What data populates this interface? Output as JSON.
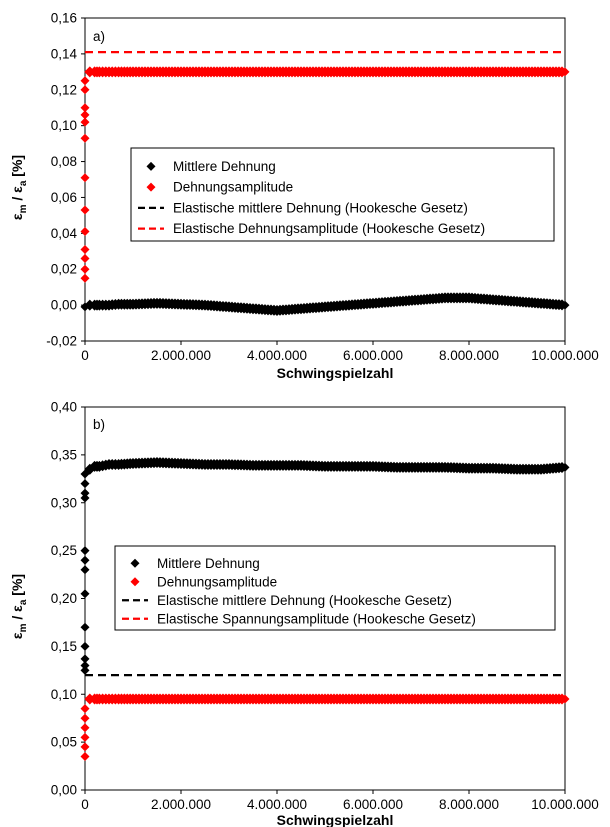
{
  "chart_data": [
    {
      "type": "scatter",
      "panel_label": "a)",
      "xlabel": "Schwingspielzahl",
      "ylabel_main": "ε",
      "ylabel_sub1": "m",
      "ylabel_sep": "/",
      "ylabel_sub2": "a",
      "ylabel_unit": "[%]",
      "xlim": [
        0,
        10000000
      ],
      "ylim": [
        -0.02,
        0.16
      ],
      "xticks": [
        0,
        2000000,
        4000000,
        6000000,
        8000000,
        10000000
      ],
      "xtick_labels": [
        "0",
        "2.000.000",
        "4.000.000",
        "6.000.000",
        "8.000.000",
        "10.000.000"
      ],
      "yticks": [
        -0.02,
        0,
        0.02,
        0.04,
        0.06,
        0.08,
        0.1,
        0.12,
        0.14,
        0.16
      ],
      "ytick_labels": [
        "-0,02",
        "0,00",
        "0,02",
        "0,04",
        "0,06",
        "0,08",
        "0,10",
        "0,12",
        "0,14",
        "0,16"
      ],
      "grid": false,
      "legend_position": "center-left",
      "series": [
        {
          "name": "Mittlere Dehnung",
          "kind": "points",
          "color": "#000000",
          "x": [
            0,
            100000,
            200000,
            300000,
            500000,
            700000,
            1000000,
            1500000,
            2000000,
            2500000,
            3000000,
            3500000,
            4000000,
            4500000,
            5000000,
            5500000,
            6000000,
            6500000,
            7000000,
            7500000,
            8000000,
            8500000,
            9000000,
            9500000,
            10000000
          ],
          "y": [
            -0.001,
            0.0,
            0.0,
            0.0,
            0.0,
            0.0005,
            0.0005,
            0.001,
            0.0005,
            0.0,
            -0.001,
            -0.002,
            -0.003,
            -0.002,
            -0.001,
            0.0,
            0.001,
            0.002,
            0.003,
            0.004,
            0.004,
            0.003,
            0.002,
            0.001,
            0.0
          ]
        },
        {
          "name": "Dehnungsamplitude",
          "kind": "points",
          "color": "#ff0000",
          "x": [
            0,
            0,
            0,
            0,
            0,
            0,
            0,
            0,
            0,
            0,
            0,
            0,
            0,
            100000,
            200000,
            300000,
            500000,
            700000,
            1000000,
            1500000,
            2000000,
            2500000,
            3000000,
            3500000,
            4000000,
            4500000,
            5000000,
            5500000,
            6000000,
            6500000,
            7000000,
            7500000,
            8000000,
            8500000,
            9000000,
            9500000,
            10000000
          ],
          "y": [
            0.015,
            0.02,
            0.026,
            0.031,
            0.041,
            0.053,
            0.071,
            0.093,
            0.102,
            0.106,
            0.11,
            0.12,
            0.125,
            0.13,
            0.13,
            0.13,
            0.13,
            0.13,
            0.13,
            0.13,
            0.13,
            0.13,
            0.13,
            0.13,
            0.13,
            0.13,
            0.13,
            0.13,
            0.13,
            0.13,
            0.13,
            0.13,
            0.13,
            0.13,
            0.13,
            0.13,
            0.13
          ]
        },
        {
          "name": "Elastische mittlere Dehnung (Hookesche Gesetz)",
          "kind": "dashed-line",
          "color": "#000000",
          "x": [],
          "y": []
        },
        {
          "name": "Elastische Dehnungsamplitude (Hookesche Gesetz)",
          "kind": "dashed-line",
          "color": "#ff0000",
          "x": [
            0,
            10000000
          ],
          "y": [
            0.141,
            0.141
          ]
        }
      ]
    },
    {
      "type": "scatter",
      "panel_label": "b)",
      "xlabel": "Schwingspielzahl",
      "ylabel_main": "ε",
      "ylabel_sub1": "m",
      "ylabel_sep": "/",
      "ylabel_sub2": "a",
      "ylabel_unit": "[%]",
      "xlim": [
        0,
        10000000
      ],
      "ylim": [
        0,
        0.4
      ],
      "xticks": [
        0,
        2000000,
        4000000,
        6000000,
        8000000,
        10000000
      ],
      "xtick_labels": [
        "0",
        "2.000.000",
        "4.000.000",
        "6.000.000",
        "8.000.000",
        "10.000.000"
      ],
      "yticks": [
        0,
        0.05,
        0.1,
        0.15,
        0.2,
        0.25,
        0.3,
        0.35,
        0.4
      ],
      "ytick_labels": [
        "0,00",
        "0,05",
        "0,10",
        "0,15",
        "0,20",
        "0,25",
        "0,30",
        "0,35",
        "0,40"
      ],
      "grid": false,
      "legend_position": "center",
      "series": [
        {
          "name": "Mittlere Dehnung",
          "kind": "points",
          "color": "#000000",
          "x": [
            0,
            0,
            0,
            0,
            0,
            0,
            0,
            0,
            0,
            0,
            0,
            0,
            0,
            100000,
            200000,
            300000,
            500000,
            700000,
            1000000,
            1500000,
            2000000,
            2500000,
            3000000,
            3500000,
            4000000,
            4500000,
            5000000,
            5500000,
            6000000,
            6500000,
            7000000,
            7500000,
            8000000,
            8500000,
            9000000,
            9500000,
            10000000
          ],
          "y": [
            0.125,
            0.13,
            0.137,
            0.15,
            0.17,
            0.205,
            0.23,
            0.24,
            0.25,
            0.305,
            0.31,
            0.32,
            0.33,
            0.335,
            0.338,
            0.338,
            0.34,
            0.34,
            0.341,
            0.342,
            0.341,
            0.34,
            0.34,
            0.339,
            0.339,
            0.339,
            0.338,
            0.338,
            0.338,
            0.337,
            0.337,
            0.337,
            0.336,
            0.336,
            0.335,
            0.335,
            0.337
          ]
        },
        {
          "name": "Dehnungsamplitude",
          "kind": "points",
          "color": "#ff0000",
          "x": [
            0,
            0,
            0,
            0,
            0,
            0,
            100000,
            200000,
            300000,
            500000,
            700000,
            1000000,
            1500000,
            2000000,
            2500000,
            3000000,
            3500000,
            4000000,
            4500000,
            5000000,
            5500000,
            6000000,
            6500000,
            7000000,
            7500000,
            8000000,
            8500000,
            9000000,
            9500000,
            10000000
          ],
          "y": [
            0.035,
            0.045,
            0.055,
            0.065,
            0.075,
            0.085,
            0.095,
            0.095,
            0.095,
            0.095,
            0.095,
            0.095,
            0.095,
            0.095,
            0.095,
            0.095,
            0.095,
            0.095,
            0.095,
            0.095,
            0.095,
            0.095,
            0.095,
            0.095,
            0.095,
            0.095,
            0.095,
            0.095,
            0.095,
            0.095
          ]
        },
        {
          "name": "Elastische mittlere Dehnung (Hookesche Gesetz)",
          "kind": "dashed-line",
          "color": "#000000",
          "x": [
            0,
            10000000
          ],
          "y": [
            0.12,
            0.12
          ]
        },
        {
          "name": "Elastische Spannungsamplitude (Hookesche Gesetz)",
          "kind": "dashed-line",
          "color": "#ff0000",
          "x": [],
          "y": []
        }
      ]
    }
  ]
}
